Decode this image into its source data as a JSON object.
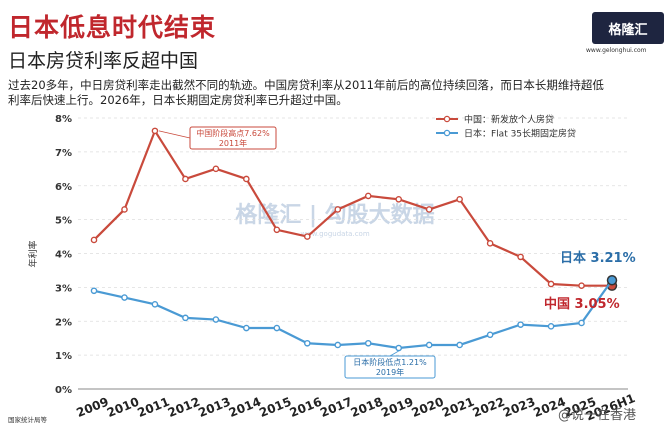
{
  "header": {
    "title": "日本低息时代结束",
    "subtitle": "日本房贷利率反超中国",
    "description": "过去20多年，中日房贷利率走出截然不同的轨迹。中国房贷利率从2011年前后的高位持续回落，而日本长期维持超低利率后快速上行。2026年，日本长期固定房贷利率已升超过中国。"
  },
  "logo": {
    "name": "格隆汇",
    "url": "www.gelonghui.com"
  },
  "watermark": {
    "text": "格隆汇 | 勾股大数据",
    "url": "www.gogudata.com"
  },
  "weibo": "@说一在香港",
  "source": "国家统计局等",
  "chart_data": {
    "type": "line",
    "ylabel": "年利率",
    "ylim": [
      0,
      8
    ],
    "yticks": [
      "0%",
      "1%",
      "2%",
      "3%",
      "4%",
      "5%",
      "6%",
      "7%",
      "8%"
    ],
    "x": [
      "2009",
      "2010",
      "2011",
      "2012",
      "2013",
      "2014",
      "2015",
      "2016",
      "2017",
      "2018",
      "2019",
      "2020",
      "2021",
      "2022",
      "2023",
      "2024",
      "2025",
      "2026H1"
    ],
    "legend_position": "top-right",
    "series": [
      {
        "name": "中国：新发放个人房贷",
        "color": "#c94a3c",
        "values": [
          4.4,
          5.3,
          7.62,
          6.2,
          6.5,
          6.2,
          4.7,
          4.5,
          5.3,
          5.7,
          5.6,
          5.3,
          5.6,
          4.3,
          3.9,
          3.1,
          3.05,
          3.05
        ]
      },
      {
        "name": "日本：Flat 35长期固定房贷",
        "color": "#4a9ad4",
        "values": [
          2.9,
          2.7,
          2.5,
          2.1,
          2.05,
          1.8,
          1.8,
          1.35,
          1.3,
          1.35,
          1.21,
          1.3,
          1.3,
          1.6,
          1.9,
          1.85,
          1.95,
          3.21
        ]
      }
    ],
    "annotations": [
      {
        "text": "中国阶段高点7.62%",
        "sub": "2011年"
      },
      {
        "text": "日本阶段低点1.21%",
        "sub": "2019年"
      },
      {
        "text": "日本 3.21%"
      },
      {
        "text": "中国 3.05%"
      }
    ]
  }
}
